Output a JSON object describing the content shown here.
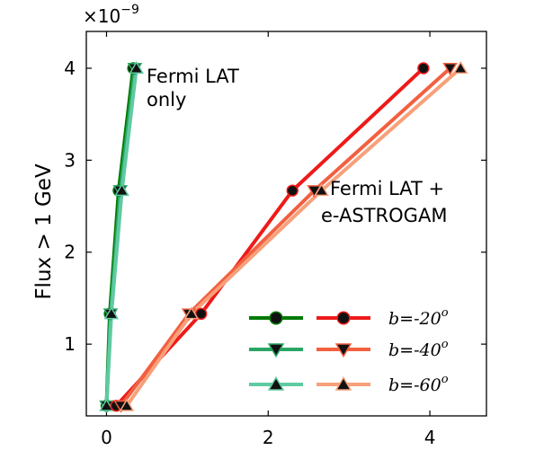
{
  "chart_data": {
    "type": "line",
    "title": "",
    "xlabel": "",
    "ylabel": "Flux > 1 GeV",
    "y_multiplier_label": "×10",
    "y_multiplier_exponent": "−9",
    "xlim": [
      -0.25,
      4.7
    ],
    "ylim": [
      0.22,
      4.4
    ],
    "x_ticks": [
      0,
      2,
      4
    ],
    "x_tick_labels": [
      "0",
      "2",
      "4"
    ],
    "y_ticks": [
      1,
      2,
      3,
      4
    ],
    "y_tick_labels": [
      "1",
      "2",
      "3",
      "4"
    ],
    "grid": false,
    "legend_position": "bottom-right",
    "legend_labels": [
      "b=-20",
      "b=-40",
      "b=-60"
    ],
    "legend_label_superscript": "o",
    "annotations": [
      {
        "lines": [
          "Fermi LAT",
          "only"
        ],
        "near": "green curves"
      },
      {
        "lines": [
          "Fermi LAT +",
          "e-ASTROGAM"
        ],
        "near": "red curves"
      }
    ],
    "series": [
      {
        "key": "lat-b20",
        "group": "Fermi LAT only",
        "color": "#007a00",
        "marker": "circle",
        "legend_row": 0,
        "legend_col": 0,
        "x": [
          0.0,
          0.04,
          0.15,
          0.33
        ],
        "y": [
          0.33,
          1.33,
          2.67,
          4.0
        ]
      },
      {
        "key": "lat-b40",
        "group": "Fermi LAT only",
        "color": "#2aa565",
        "marker": "triangle-down",
        "legend_row": 1,
        "legend_col": 0,
        "x": [
          0.0,
          0.05,
          0.17,
          0.35
        ],
        "y": [
          0.33,
          1.33,
          2.67,
          4.0
        ]
      },
      {
        "key": "lat-b60",
        "group": "Fermi LAT only",
        "color": "#5fcaa2",
        "marker": "triangle-up",
        "legend_row": 2,
        "legend_col": 0,
        "x": [
          0.0,
          0.06,
          0.19,
          0.37
        ],
        "y": [
          0.33,
          1.33,
          2.67,
          4.0
        ]
      },
      {
        "key": "ast-b20",
        "group": "Fermi LAT + e-ASTROGAM",
        "color": "#ee1a1a",
        "marker": "circle",
        "legend_row": 0,
        "legend_col": 1,
        "x": [
          0.12,
          1.17,
          2.3,
          3.92
        ],
        "y": [
          0.33,
          1.33,
          2.67,
          4.0
        ]
      },
      {
        "key": "ast-b40",
        "group": "Fermi LAT + e-ASTROGAM",
        "color": "#f26040",
        "marker": "triangle-down",
        "legend_row": 1,
        "legend_col": 1,
        "x": [
          0.18,
          1.02,
          2.57,
          4.25
        ],
        "y": [
          0.33,
          1.33,
          2.67,
          4.0
        ]
      },
      {
        "key": "ast-b60",
        "group": "Fermi LAT + e-ASTROGAM",
        "color": "#f7a07a",
        "marker": "triangle-up",
        "legend_row": 2,
        "legend_col": 1,
        "x": [
          0.25,
          1.05,
          2.66,
          4.38
        ],
        "y": [
          0.33,
          1.33,
          2.67,
          4.0
        ]
      }
    ]
  }
}
